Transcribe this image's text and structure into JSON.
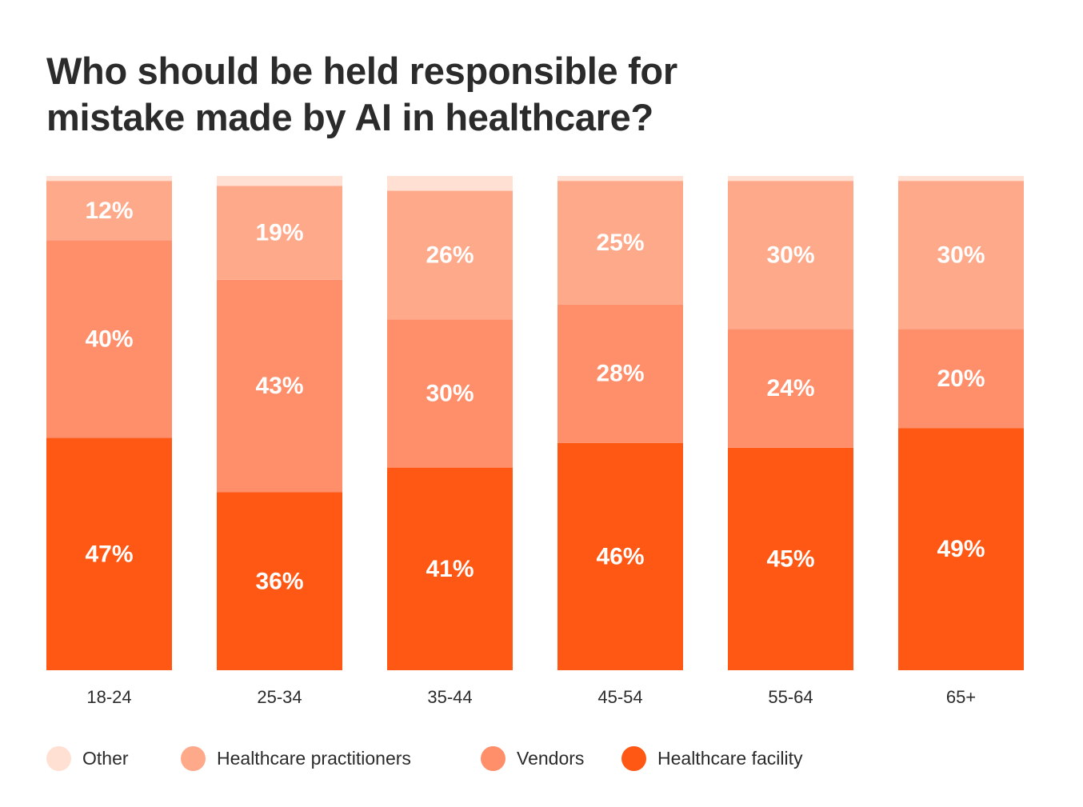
{
  "title": {
    "line1": "Who should be held responsible for",
    "line2": "mistake made by AI in healthcare?"
  },
  "colors": {
    "Other": "#ffe0d3",
    "Healthcare practitioners": "#fea98a",
    "Vendors": "#ff8f6b",
    "Healthcare facility": "#ff5714"
  },
  "chart_data": {
    "type": "bar",
    "stacked": true,
    "orientation": "vertical",
    "title": "Who should be held responsible for mistake made by AI in healthcare?",
    "categories": [
      "18-24",
      "25-34",
      "35-44",
      "45-54",
      "55-64",
      "65+"
    ],
    "series": [
      {
        "name": "Healthcare facility",
        "values": [
          47,
          36,
          41,
          46,
          45,
          49
        ],
        "labels": [
          "47%",
          "36%",
          "41%",
          "46%",
          "45%",
          "49%"
        ]
      },
      {
        "name": "Vendors",
        "values": [
          40,
          43,
          30,
          28,
          24,
          20
        ],
        "labels": [
          "40%",
          "43%",
          "30%",
          "28%",
          "24%",
          "20%"
        ]
      },
      {
        "name": "Healthcare practitioners",
        "values": [
          12,
          19,
          26,
          25,
          30,
          30
        ],
        "labels": [
          "12%",
          "19%",
          "26%",
          "25%",
          "30%",
          "30%"
        ]
      },
      {
        "name": "Other",
        "values": [
          1,
          2,
          3,
          1,
          1,
          1
        ],
        "labels": [
          "",
          "",
          "",
          "",
          "",
          ""
        ]
      }
    ],
    "xlabel": "",
    "ylabel": "",
    "ylim": [
      0,
      100
    ],
    "grid": false,
    "legend_position": "bottom",
    "legend": [
      "Other",
      "Healthcare practitioners",
      "Vendors",
      "Healthcare facility"
    ]
  }
}
